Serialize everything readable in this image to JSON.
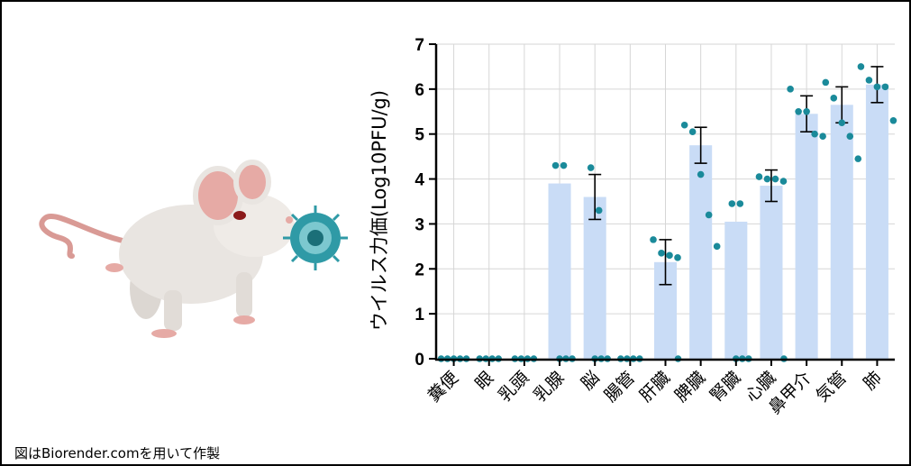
{
  "credit": "図はBiorender.comを用いて作製",
  "illustration": {
    "subject": "mouse",
    "virus": "virus-particle",
    "colors": {
      "body": "#e9e5e1",
      "ear": "#e6aaa5",
      "tail": "#d99a95",
      "eye": "#8b1a1a",
      "virus": "#2f9aa6"
    }
  },
  "chart_data": {
    "type": "bar",
    "ylabel": "ウイルス力価(Log10PFU/g)",
    "xlabel": "",
    "title": "",
    "ylim": [
      0,
      7
    ],
    "yticks": [
      0,
      1,
      2,
      3,
      4,
      5,
      6,
      7
    ],
    "grid": true,
    "bar_color": "#c9dcf6",
    "point_color": "#1a8a9a",
    "categories": [
      "糞便",
      "眼",
      "乳頭",
      "乳腺",
      "脳",
      "腸管",
      "肝臓",
      "脾臓",
      "腎臓",
      "心臓",
      "鼻甲介",
      "気管",
      "肺"
    ],
    "means": [
      0,
      0,
      0,
      3.9,
      3.6,
      0,
      2.15,
      4.75,
      3.05,
      3.85,
      5.45,
      5.65,
      6.1
    ],
    "error_sd": [
      0,
      0,
      0,
      0,
      0.5,
      0,
      0.5,
      0.4,
      0,
      0.35,
      0.4,
      0.4,
      0.4
    ],
    "points": [
      [
        0,
        0,
        0,
        0,
        0
      ],
      [
        0,
        0,
        0,
        0
      ],
      [
        0,
        0,
        0,
        0
      ],
      [
        4.3,
        4.3,
        0,
        0,
        0
      ],
      [
        4.25,
        3.3,
        0,
        0,
        0
      ],
      [
        0,
        0,
        0,
        0
      ],
      [
        2.65,
        2.35,
        2.3,
        2.25,
        0
      ],
      [
        5.2,
        5.05,
        4.1,
        3.2,
        2.5
      ],
      [
        3.45,
        3.45,
        0,
        0,
        0
      ],
      [
        4.05,
        4.0,
        4.0,
        3.95,
        0
      ],
      [
        6.0,
        5.5,
        5.5,
        5.0,
        4.95
      ],
      [
        6.15,
        5.8,
        5.25,
        4.95,
        4.45
      ],
      [
        6.5,
        6.2,
        6.05,
        6.05,
        5.3
      ]
    ]
  }
}
